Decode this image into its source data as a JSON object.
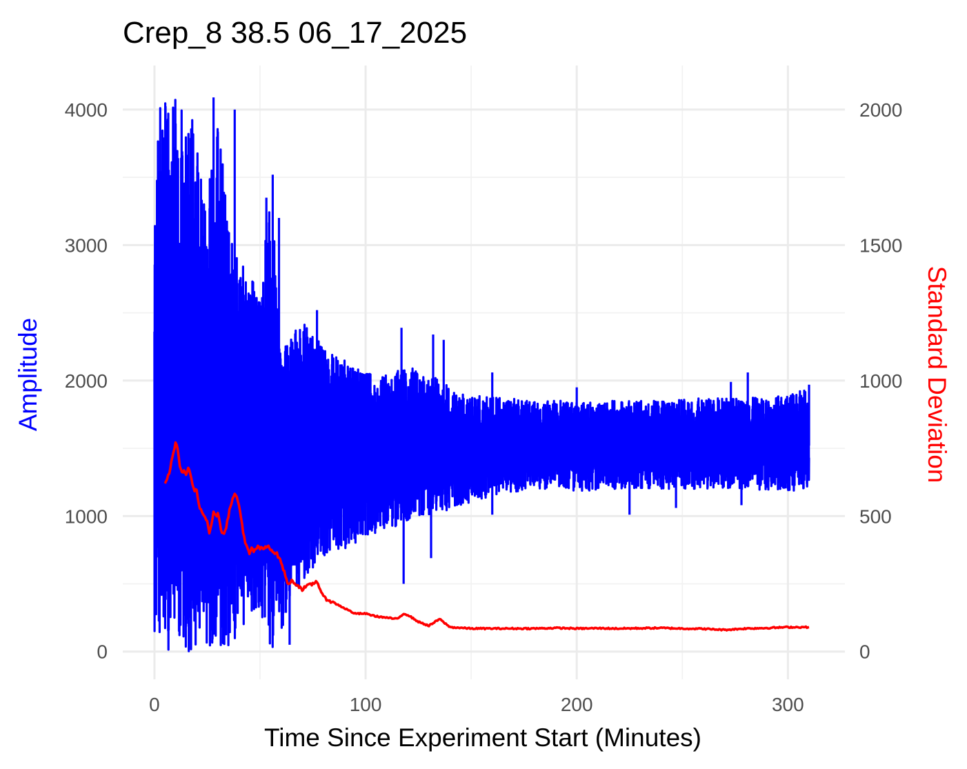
{
  "chart_data": {
    "type": "line",
    "title": "Crep_8 38.5 06_17_2025",
    "xlabel": "Time Since Experiment Start (Minutes)",
    "ylabel": "Amplitude",
    "y2label": "Standard Deviation",
    "xlim": [
      -15,
      327
    ],
    "ylim": [
      -205,
      4325
    ],
    "y2lim": [
      -102.5,
      2162.5
    ],
    "x_ticks": [
      0,
      100,
      200,
      300
    ],
    "y_ticks": [
      0,
      1000,
      2000,
      3000,
      4000
    ],
    "y2_ticks": [
      0,
      500,
      1000,
      1500,
      2000
    ],
    "grid": true,
    "colors": {
      "amplitude": "#0000ff",
      "std": "#ff0000",
      "ylabel": "#0000ff",
      "y2label": "#ff0000"
    },
    "series": [
      {
        "name": "Amplitude",
        "axis": "left",
        "envelope": {
          "x": [
            0,
            2,
            5,
            10,
            15,
            20,
            25,
            30,
            35,
            40,
            45,
            50,
            55,
            60,
            65,
            70,
            75,
            80,
            90,
            100,
            110,
            120,
            130,
            140,
            150,
            160,
            180,
            200,
            220,
            240,
            260,
            280,
            300,
            310
          ],
          "max": [
            3400,
            4000,
            4090,
            4090,
            4090,
            4000,
            3300,
            4090,
            3200,
            2900,
            2800,
            2600,
            3500,
            2200,
            2350,
            2450,
            2350,
            2250,
            2150,
            2050,
            2050,
            2100,
            2050,
            1950,
            1900,
            1880,
            1860,
            1850,
            1850,
            1850,
            1870,
            1870,
            1890,
            1960
          ],
          "min": [
            150,
            0,
            0,
            0,
            0,
            0,
            0,
            0,
            0,
            150,
            250,
            300,
            0,
            150,
            400,
            500,
            600,
            700,
            750,
            850,
            900,
            950,
            1000,
            1050,
            1100,
            1150,
            1200,
            1180,
            1200,
            1200,
            1200,
            1200,
            1180,
            1200
          ]
        },
        "spikes": [
          [
            28,
            4090
          ],
          [
            38,
            4000
          ],
          [
            53,
            3350
          ],
          [
            56,
            3520
          ],
          [
            59,
            3200
          ],
          [
            77,
            2520
          ],
          [
            117,
            2390
          ],
          [
            132,
            2340
          ],
          [
            137,
            2300
          ],
          [
            160,
            2060
          ],
          [
            200,
            1950
          ],
          [
            273,
            1990
          ],
          [
            281,
            2060
          ],
          [
            310,
            1970
          ],
          [
            64,
            50
          ],
          [
            118,
            500
          ],
          [
            131,
            690
          ],
          [
            160,
            1010
          ],
          [
            225,
            1010
          ],
          [
            247,
            1060
          ],
          [
            278,
            1080
          ]
        ],
        "center": 1520
      },
      {
        "name": "Standard Deviation",
        "axis": "right",
        "x": [
          5,
          6,
          7,
          8,
          9,
          10,
          11,
          12,
          13,
          14,
          15,
          16,
          17,
          18,
          19,
          20,
          21,
          22,
          23,
          24,
          25,
          26,
          27,
          28,
          29,
          30,
          31,
          32,
          33,
          34,
          35,
          36,
          37,
          38,
          39,
          40,
          41,
          42,
          43,
          44,
          45,
          46,
          47,
          48,
          49,
          50,
          52,
          54,
          56,
          58,
          60,
          62,
          63,
          65,
          67,
          70,
          72,
          75,
          77,
          80,
          85,
          90,
          95,
          100,
          105,
          110,
          115,
          118,
          120,
          125,
          130,
          135,
          140,
          150,
          160,
          170,
          180,
          190,
          200,
          210,
          220,
          230,
          240,
          250,
          260,
          270,
          280,
          290,
          300,
          310
        ],
        "values": [
          620,
          640,
          660,
          700,
          740,
          770,
          750,
          680,
          660,
          670,
          650,
          680,
          660,
          620,
          590,
          600,
          540,
          520,
          510,
          500,
          480,
          440,
          470,
          520,
          500,
          510,
          470,
          440,
          440,
          460,
          500,
          540,
          560,
          580,
          570,
          540,
          500,
          440,
          400,
          380,
          360,
          380,
          370,
          380,
          385,
          380,
          380,
          390,
          370,
          360,
          330,
          280,
          250,
          260,
          250,
          230,
          240,
          250,
          260,
          200,
          180,
          160,
          140,
          140,
          130,
          125,
          120,
          140,
          135,
          110,
          95,
          120,
          90,
          85,
          85,
          85,
          85,
          87,
          85,
          86,
          85,
          86,
          87,
          85,
          84,
          80,
          85,
          87,
          90,
          90
        ]
      }
    ]
  }
}
